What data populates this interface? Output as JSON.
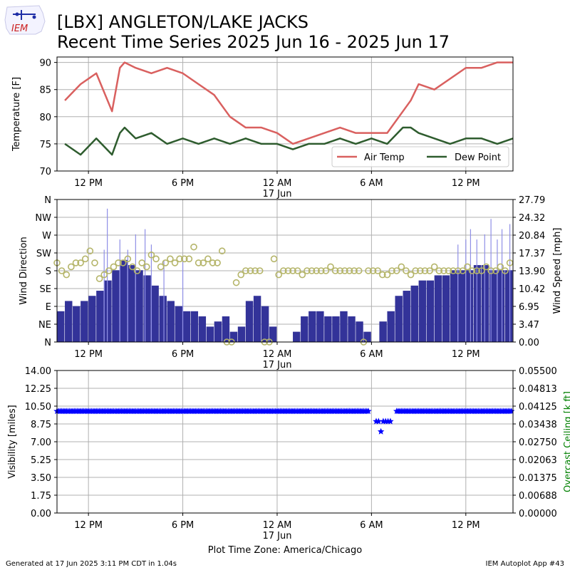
{
  "header": {
    "logo_text": "IEM",
    "title_line1": "[LBX] ANGLETON/LAKE JACKS",
    "title_line2": "Recent Time Series 2025 Jun 16 - 2025 Jun 17"
  },
  "footer": {
    "generated": "Generated at 17 Jun 2025 3:11 PM CDT in 1.04s",
    "app": "IEM Autoplot App #43",
    "timezone": "Plot Time Zone: America/Chicago"
  },
  "colors": {
    "air_temp": "#d9605f",
    "dew_point": "#2e5c2e",
    "wind_bar": "#333399",
    "gust": "#8f8fe6",
    "wind_dir": "#b5b56a",
    "visibility": "#0000ff",
    "ceiling_axis": "#008000",
    "grid": "#b0b0b0"
  },
  "chart_data": [
    {
      "type": "line",
      "x_unit": "hours after 2025-06-16 10:00 CDT",
      "x_ticks": [
        2,
        8,
        14,
        20,
        26
      ],
      "x_tick_labels": [
        "12 PM",
        "6 PM",
        "12 AM",
        "6 AM",
        "12 PM"
      ],
      "x_date_label": "17 Jun",
      "xlim": [
        0,
        29
      ],
      "ylabel": "Temperature [F]",
      "ylim": [
        70,
        91
      ],
      "yticks": [
        70,
        75,
        80,
        85,
        90
      ],
      "grid": true,
      "legend": "lower-right",
      "series": [
        {
          "name": "Air Temp",
          "x": [
            0.5,
            1.5,
            2.5,
            3.5,
            4.0,
            4.3,
            5,
            6,
            7,
            8,
            9,
            10,
            11,
            12,
            13,
            14,
            15,
            16,
            17,
            18,
            19,
            20,
            21,
            22,
            22.5,
            23,
            24,
            25,
            26,
            27,
            28,
            29
          ],
          "y": [
            83,
            86,
            88,
            81,
            89,
            90,
            89,
            88,
            89,
            88,
            86,
            84,
            80,
            78,
            78,
            77,
            75,
            76,
            77,
            78,
            77,
            77,
            77,
            81,
            83,
            86,
            85,
            87,
            89,
            89,
            90,
            90
          ]
        },
        {
          "name": "Dew Point",
          "x": [
            0.5,
            1.5,
            2.5,
            3.5,
            4.0,
            4.3,
            5,
            6,
            7,
            8,
            9,
            10,
            11,
            12,
            13,
            14,
            15,
            16,
            17,
            18,
            19,
            20,
            21,
            22,
            22.5,
            23,
            24,
            25,
            26,
            27,
            28,
            29
          ],
          "y": [
            75,
            73,
            76,
            73,
            77,
            78,
            76,
            77,
            75,
            76,
            75,
            76,
            75,
            76,
            75,
            75,
            74,
            75,
            75,
            76,
            75,
            76,
            75,
            78,
            78,
            77,
            76,
            75,
            76,
            76,
            75,
            76
          ]
        }
      ]
    },
    {
      "type": "bar",
      "x_unit": "hours after 2025-06-16 10:00 CDT",
      "x_ticks": [
        2,
        8,
        14,
        20,
        26
      ],
      "x_tick_labels": [
        "12 PM",
        "6 PM",
        "12 AM",
        "6 AM",
        "12 PM"
      ],
      "x_date_label": "17 Jun",
      "xlim": [
        0,
        29
      ],
      "ylabel": "Wind Direction",
      "ytick_labels": [
        "N",
        "NE",
        "E",
        "SE",
        "S",
        "SW",
        "W",
        "NW",
        "N"
      ],
      "ylim": [
        0,
        360
      ],
      "y2label": "Wind Speed [mph]",
      "y2ticks": [
        "0.00",
        "3.47",
        "6.95",
        "10.42",
        "13.90",
        "17.37",
        "20.84",
        "24.32",
        "27.79"
      ],
      "y2lim": [
        0,
        27.79
      ],
      "grid": true,
      "series": [
        {
          "name": "Wind Speed",
          "x": [
            0,
            0.5,
            1,
            1.5,
            2,
            2.5,
            3,
            3.5,
            4,
            4.5,
            5,
            5.5,
            6,
            6.5,
            7,
            7.5,
            8,
            8.5,
            9,
            9.5,
            10,
            10.5,
            11,
            11.5,
            12,
            12.5,
            13,
            13.5,
            14,
            14.5,
            15,
            15.5,
            16,
            16.5,
            17,
            17.5,
            18,
            18.5,
            19,
            19.5,
            20,
            20.5,
            21,
            21.5,
            22,
            22.5,
            23,
            23.5,
            24,
            24.5,
            25,
            25.5,
            26,
            26.5,
            27,
            27.5,
            28,
            28.5
          ],
          "y": [
            6,
            8,
            7,
            8,
            9,
            10,
            12,
            14,
            16,
            15,
            14,
            13,
            11,
            9,
            8,
            7,
            6,
            6,
            5,
            3,
            4,
            5,
            2,
            3,
            8,
            9,
            7,
            3,
            0,
            0,
            2,
            5,
            6,
            6,
            5,
            5,
            6,
            5,
            4,
            2,
            0,
            4,
            6,
            9,
            10,
            11,
            12,
            12,
            13,
            13,
            14,
            14,
            14,
            15,
            15,
            14,
            14,
            14
          ]
        },
        {
          "name": "Wind Gust",
          "x": [
            3.0,
            3.2,
            4.0,
            4.5,
            5.0,
            5.6,
            6.0,
            6.8,
            8.0,
            25.5,
            26.0,
            26.3,
            26.7,
            27.2,
            27.6,
            28.0,
            28.3,
            28.8
          ],
          "y": [
            18,
            26,
            20,
            18,
            21,
            22,
            19,
            16,
            16,
            19,
            20,
            22,
            20,
            21,
            24,
            20,
            22,
            23
          ]
        },
        {
          "name": "Wind Direction",
          "x": [
            0,
            0.3,
            0.6,
            0.9,
            1.2,
            1.5,
            1.8,
            2.1,
            2.4,
            2.7,
            3.0,
            3.3,
            3.6,
            3.9,
            4.2,
            4.5,
            4.8,
            5.1,
            5.4,
            5.7,
            6.0,
            6.3,
            6.6,
            6.9,
            7.2,
            7.5,
            7.8,
            8.1,
            8.4,
            8.7,
            9.0,
            9.3,
            9.6,
            9.9,
            10.2,
            10.5,
            10.8,
            11.1,
            11.4,
            11.7,
            12.0,
            12.3,
            12.6,
            12.9,
            13.2,
            13.5,
            13.8,
            14.1,
            14.4,
            14.7,
            15.0,
            15.3,
            15.6,
            15.9,
            16.2,
            16.5,
            16.8,
            17.1,
            17.4,
            17.7,
            18.0,
            18.3,
            18.6,
            18.9,
            19.2,
            19.5,
            19.8,
            20.1,
            20.4,
            20.7,
            21.0,
            21.3,
            21.6,
            21.9,
            22.2,
            22.5,
            22.8,
            23.1,
            23.4,
            23.7,
            24.0,
            24.3,
            24.6,
            24.9,
            25.2,
            25.5,
            25.8,
            26.1,
            26.4,
            26.7,
            27.0,
            27.3,
            27.6,
            27.9,
            28.2,
            28.5,
            28.8
          ],
          "y": [
            200,
            180,
            170,
            190,
            200,
            200,
            210,
            230,
            200,
            160,
            170,
            180,
            190,
            200,
            200,
            210,
            190,
            180,
            200,
            190,
            220,
            210,
            190,
            200,
            210,
            200,
            210,
            210,
            210,
            240,
            200,
            200,
            210,
            200,
            200,
            230,
            0,
            0,
            150,
            170,
            180,
            180,
            180,
            180,
            0,
            0,
            210,
            170,
            180,
            180,
            180,
            180,
            170,
            180,
            180,
            180,
            180,
            180,
            190,
            180,
            180,
            180,
            180,
            180,
            180,
            0,
            180,
            180,
            180,
            170,
            170,
            180,
            180,
            190,
            180,
            170,
            180,
            180,
            180,
            180,
            190,
            180,
            180,
            180,
            180,
            180,
            180,
            190,
            180,
            180,
            180,
            190,
            180,
            180,
            190,
            180,
            200
          ]
        }
      ]
    },
    {
      "type": "scatter",
      "x_unit": "hours after 2025-06-16 10:00 CDT",
      "x_ticks": [
        2,
        8,
        14,
        20,
        26
      ],
      "x_tick_labels": [
        "12 PM",
        "6 PM",
        "12 AM",
        "6 AM",
        "12 PM"
      ],
      "x_date_label": "17 Jun",
      "xlim": [
        0,
        29
      ],
      "ylabel": "Visibility [miles]",
      "yticks": [
        "0.00",
        "1.75",
        "3.50",
        "5.25",
        "7.00",
        "8.75",
        "10.50",
        "12.25",
        "14.00"
      ],
      "ylim": [
        0,
        14
      ],
      "y2label": "Overcast Ceiling [k ft]",
      "y2ticks": [
        "0.00000",
        "0.00688",
        "0.01375",
        "0.02063",
        "0.02750",
        "0.03438",
        "0.04125",
        "0.04813",
        "0.05500"
      ],
      "y2lim": [
        0,
        0.055
      ],
      "grid": true,
      "series": [
        {
          "name": "Visibility",
          "x_range": [
            0,
            29
          ],
          "y": 10,
          "dip_x": [
            20.3,
            20.45,
            20.6,
            20.75,
            20.9,
            21.05,
            21.2
          ],
          "dip_y": [
            9,
            9,
            8,
            9,
            9,
            9,
            9
          ]
        }
      ]
    }
  ]
}
